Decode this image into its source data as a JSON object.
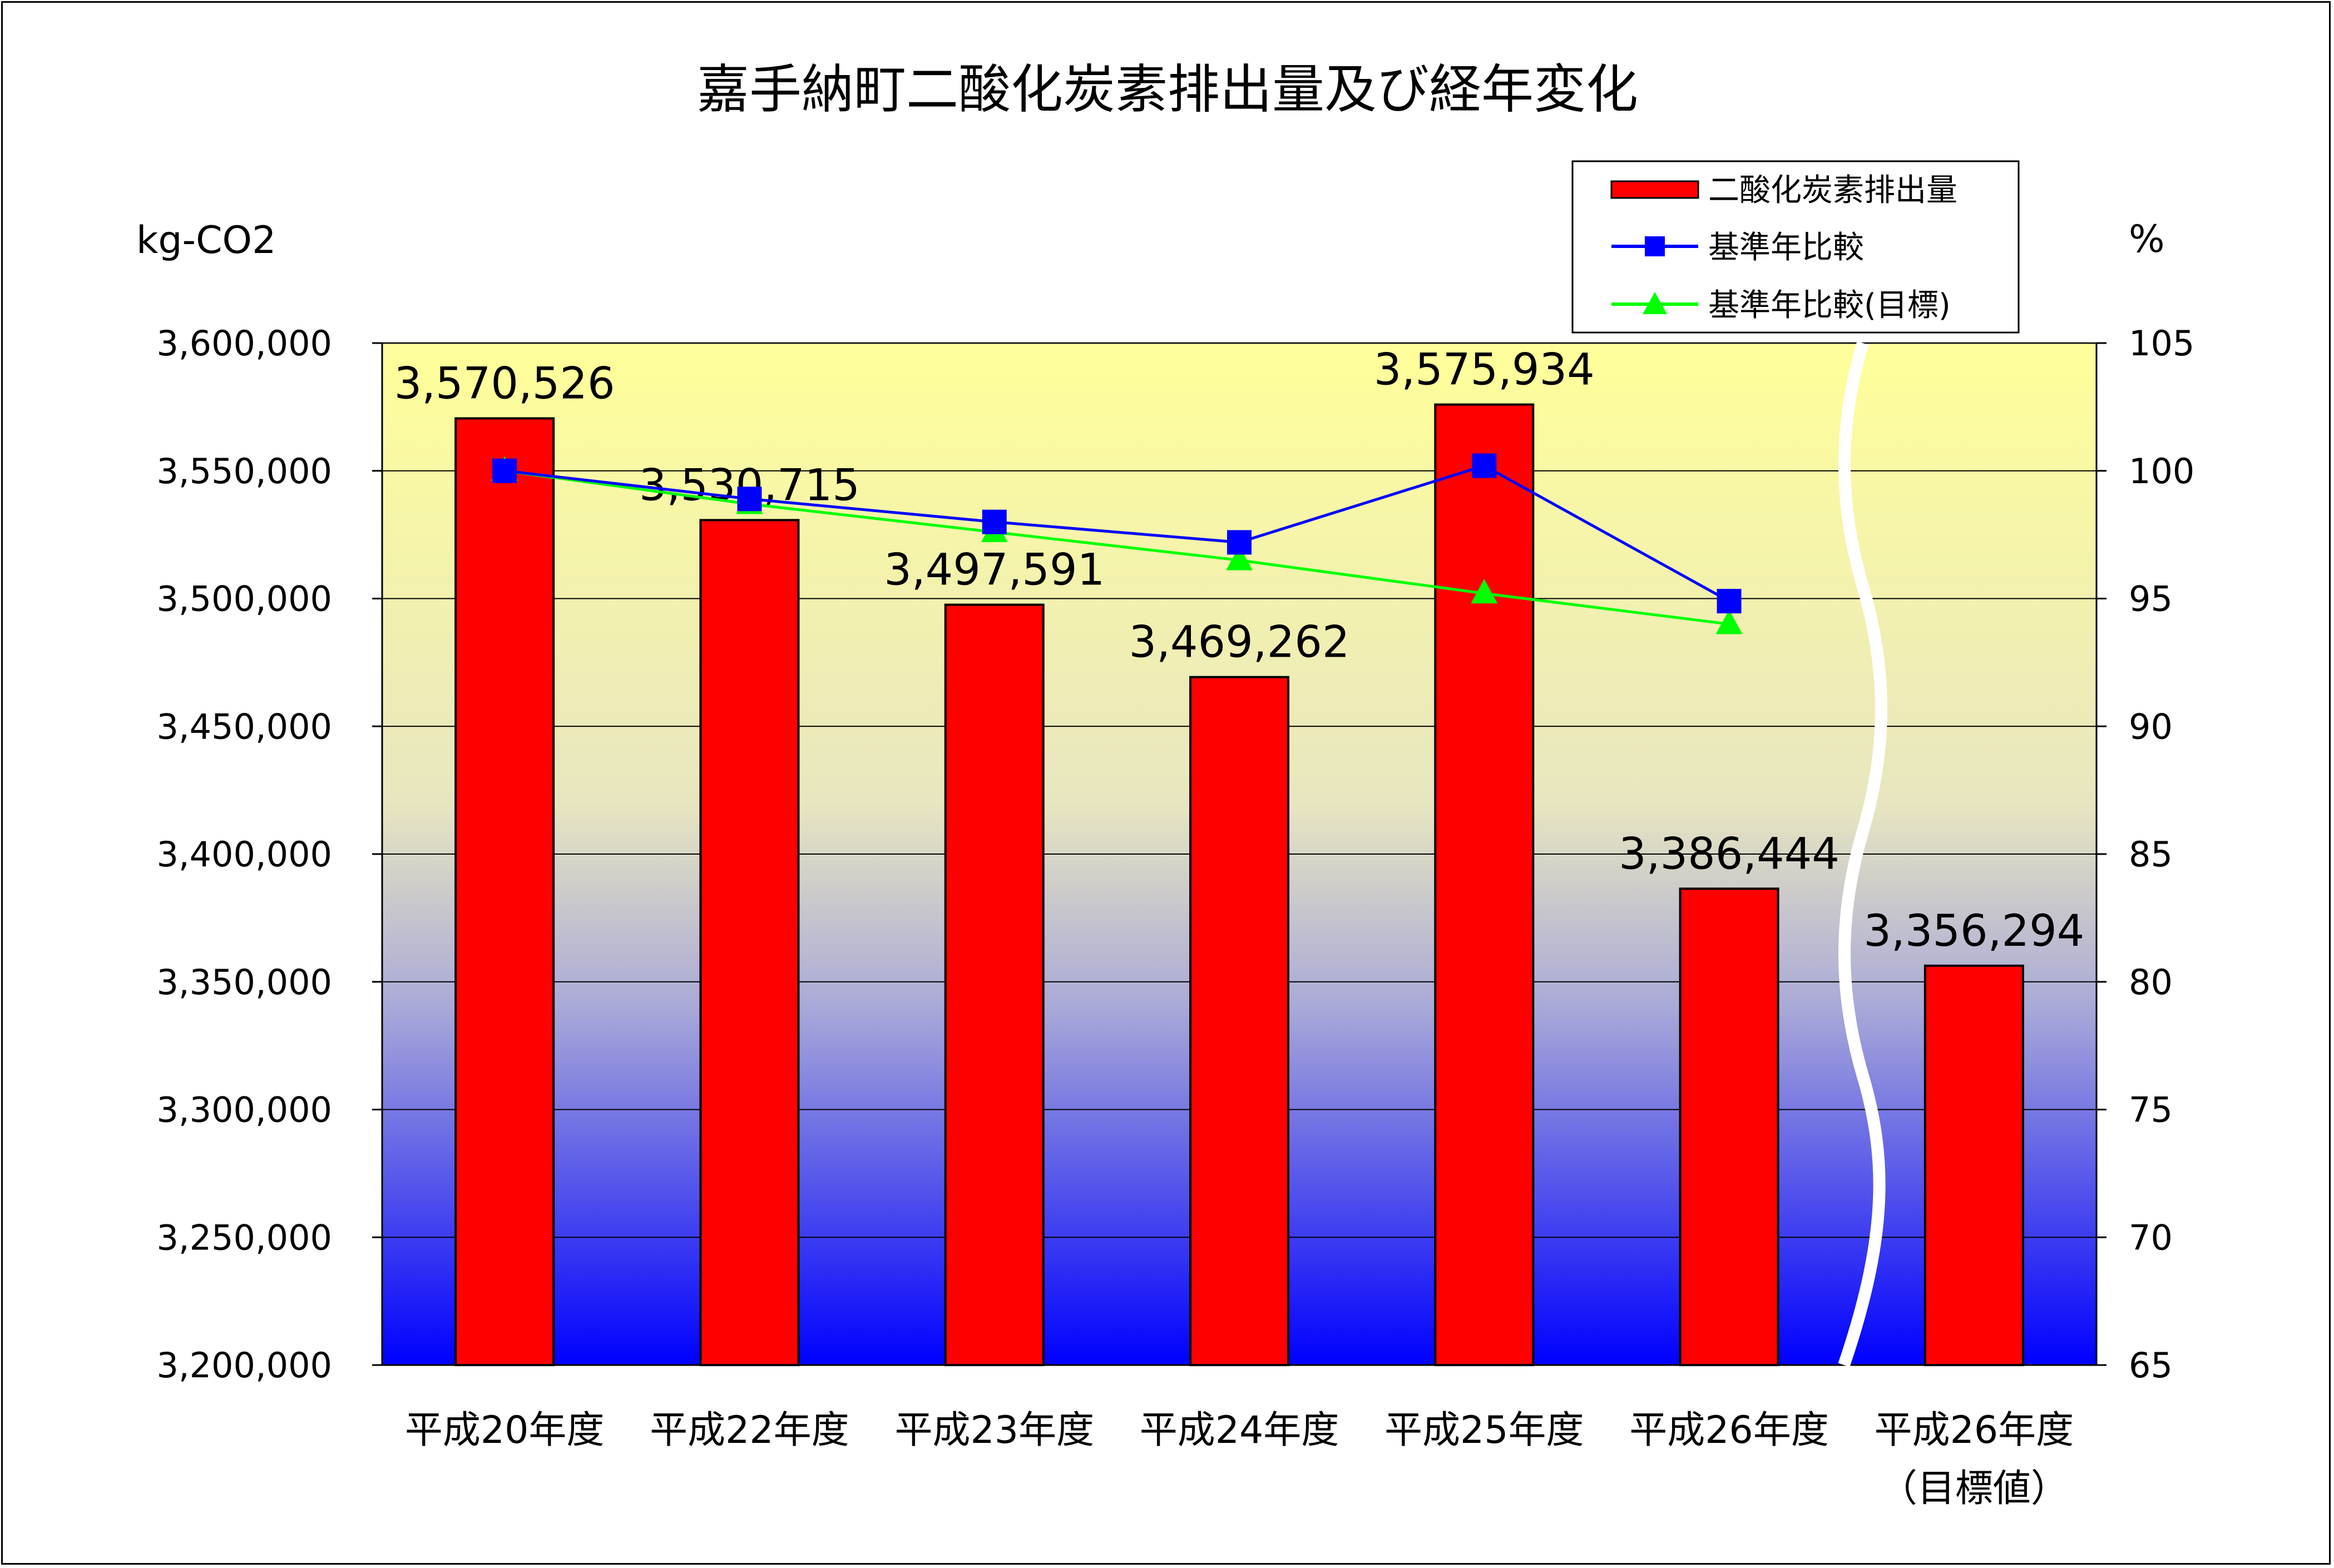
{
  "colors": {
    "bar": "#ff0000",
    "line_actual": "#0000ff",
    "line_target": "#00ff00",
    "gradient_top": "#ffff99",
    "gradient_bottom": "#0000ff"
  },
  "chart_data": {
    "type": "bar",
    "title": "嘉手納町二酸化炭素排出量及び経年変化",
    "y_left_unit": "kg-CO2",
    "y_right_unit": "%",
    "ylim_left": [
      3200000,
      3600000
    ],
    "ylim_right": [
      65,
      105
    ],
    "yticks_left": [
      "3,200,000",
      "3,250,000",
      "3,300,000",
      "3,350,000",
      "3,400,000",
      "3,450,000",
      "3,500,000",
      "3,550,000",
      "3,600,000"
    ],
    "yticks_right": [
      "65",
      "70",
      "75",
      "80",
      "85",
      "90",
      "95",
      "100",
      "105"
    ],
    "grid": true,
    "legend_position": "top-right",
    "categories": [
      {
        "line1": "平成20年度",
        "line2": ""
      },
      {
        "line1": "平成22年度",
        "line2": ""
      },
      {
        "line1": "平成23年度",
        "line2": ""
      },
      {
        "line1": "平成24年度",
        "line2": ""
      },
      {
        "line1": "平成25年度",
        "line2": ""
      },
      {
        "line1": "平成26年度",
        "line2": ""
      },
      {
        "line1": "平成26年度",
        "line2": "（目標値）"
      }
    ],
    "series": [
      {
        "name": "二酸化炭素排出量",
        "type": "bar",
        "axis": "left",
        "values": [
          3570526,
          3530715,
          3497591,
          3469262,
          3575934,
          3386444,
          3356294
        ],
        "labels": [
          "3,570,526",
          "3,530,715",
          "3,497,591",
          "3,469,262",
          "3,575,934",
          "3,386,444",
          "3,356,294"
        ]
      },
      {
        "name": "基準年比較",
        "type": "line",
        "marker": "square",
        "axis": "right",
        "values": [
          100,
          98.9,
          98.0,
          97.2,
          100.2,
          94.9,
          null
        ]
      },
      {
        "name": "基準年比較(目標)",
        "type": "line",
        "marker": "triangle",
        "axis": "right",
        "values": [
          100,
          98.7,
          97.6,
          96.5,
          95.2,
          94.0,
          null
        ]
      }
    ]
  }
}
